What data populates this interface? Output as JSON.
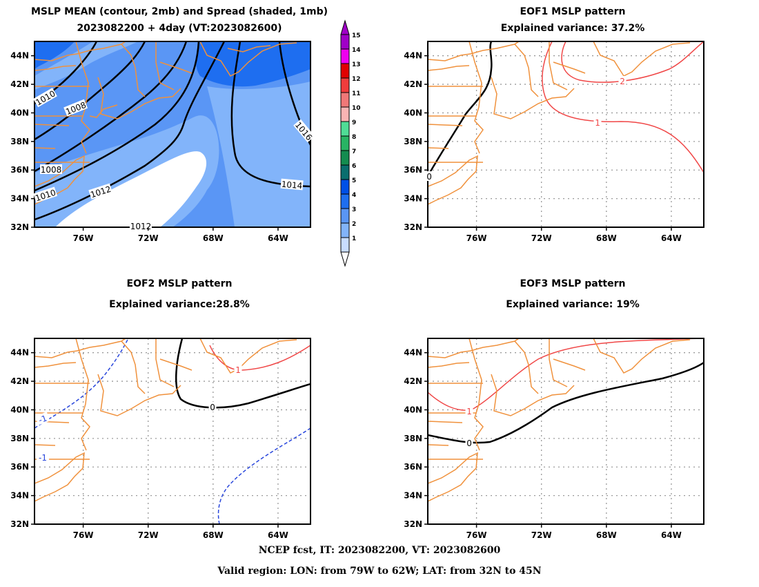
{
  "panels": {
    "p1": {
      "title1": "MSLP MEAN (contour, 2mb) and Spread (shaded, 1mb)",
      "title2": "2023082200 + 4day (VT:2023082600)"
    },
    "p2": {
      "title1": "EOF1 MSLP pattern",
      "title2": "Explained variance: 37.2%"
    },
    "p3": {
      "title1": "EOF2 MSLP pattern",
      "title2": "Explained variance:28.8%"
    },
    "p4": {
      "title1": "EOF3 MSLP pattern",
      "title2": "Explained variance: 19%"
    }
  },
  "map": {
    "lon_ticks": [
      "76W",
      "72W",
      "68W",
      "64W"
    ],
    "lat_ticks": [
      "44N",
      "42N",
      "40N",
      "38N",
      "36N",
      "34N",
      "32N"
    ],
    "lon_range": [
      -79,
      -62
    ],
    "lat_range": [
      32,
      45
    ]
  },
  "mean_contour_labels": [
    "1010",
    "1008",
    "1016",
    "1008",
    "1014",
    "1010",
    "1012",
    "1012"
  ],
  "eof1_labels": [
    "0",
    "2",
    "1"
  ],
  "eof2_labels": [
    "-1",
    "-1",
    "1",
    "0"
  ],
  "eof3_labels": [
    "1",
    "0"
  ],
  "colorbar": {
    "labels": [
      "15",
      "14",
      "13",
      "12",
      "11",
      "10",
      "9",
      "8",
      "7",
      "6",
      "5",
      "4",
      "3",
      "2",
      "1"
    ],
    "colors": [
      "#a000c8",
      "#f000f0",
      "#e00000",
      "#f03c3c",
      "#f07878",
      "#fab4b4",
      "#50dc96",
      "#28b464",
      "#148c50",
      "#0a6e6e",
      "#0050e6",
      "#1e6ef0",
      "#5a96f5",
      "#82b4fa",
      "#c8dcff"
    ]
  },
  "colors": {
    "coast": "#f0913c",
    "pos": "#f04646",
    "neg": "#2846dc",
    "zero": "#000000"
  },
  "footer": {
    "line1": "NCEP fcst, IT: 2023082200, VT: 2023082600",
    "line2": "Valid region: LON: from 79W to 62W; LAT: from 32N to 45N"
  }
}
